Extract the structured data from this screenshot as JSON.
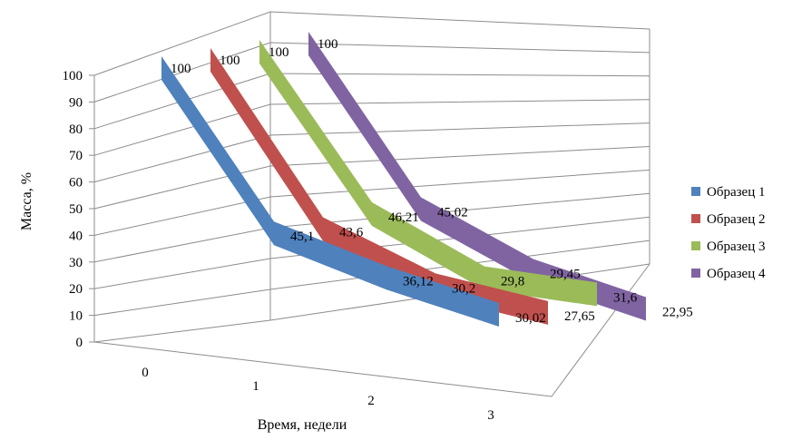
{
  "chart_data": {
    "type": "line",
    "is_3d": true,
    "categories": [
      "0",
      "1",
      "2",
      "3"
    ],
    "xlabel": "Время, недели",
    "ylabel": "Масса, %",
    "ylim": [
      0,
      100
    ],
    "ytick_step": 10,
    "grid": true,
    "legend_position": "right",
    "series": [
      {
        "name": "Образец 1",
        "values": [
          100,
          45.1,
          36.12,
          30.02
        ],
        "labels": [
          "100",
          "45,1",
          "36,12",
          "30,02"
        ],
        "color": "#4F81BD"
      },
      {
        "name": "Образец 2",
        "values": [
          100,
          43.6,
          30.2,
          27.65
        ],
        "labels": [
          "100",
          "43,6",
          "30,2",
          "27,65"
        ],
        "color": "#C0504D"
      },
      {
        "name": "Образец 3",
        "values": [
          100,
          46.21,
          29.8,
          31.6
        ],
        "labels": [
          "100",
          "46,21",
          "29,8",
          "31,6"
        ],
        "color": "#9BBB59"
      },
      {
        "name": "Образец 4",
        "values": [
          100,
          45.02,
          29.45,
          22.95
        ],
        "labels": [
          "100",
          "45,02",
          "29,45",
          "22,95"
        ],
        "color": "#8064A2"
      }
    ]
  }
}
